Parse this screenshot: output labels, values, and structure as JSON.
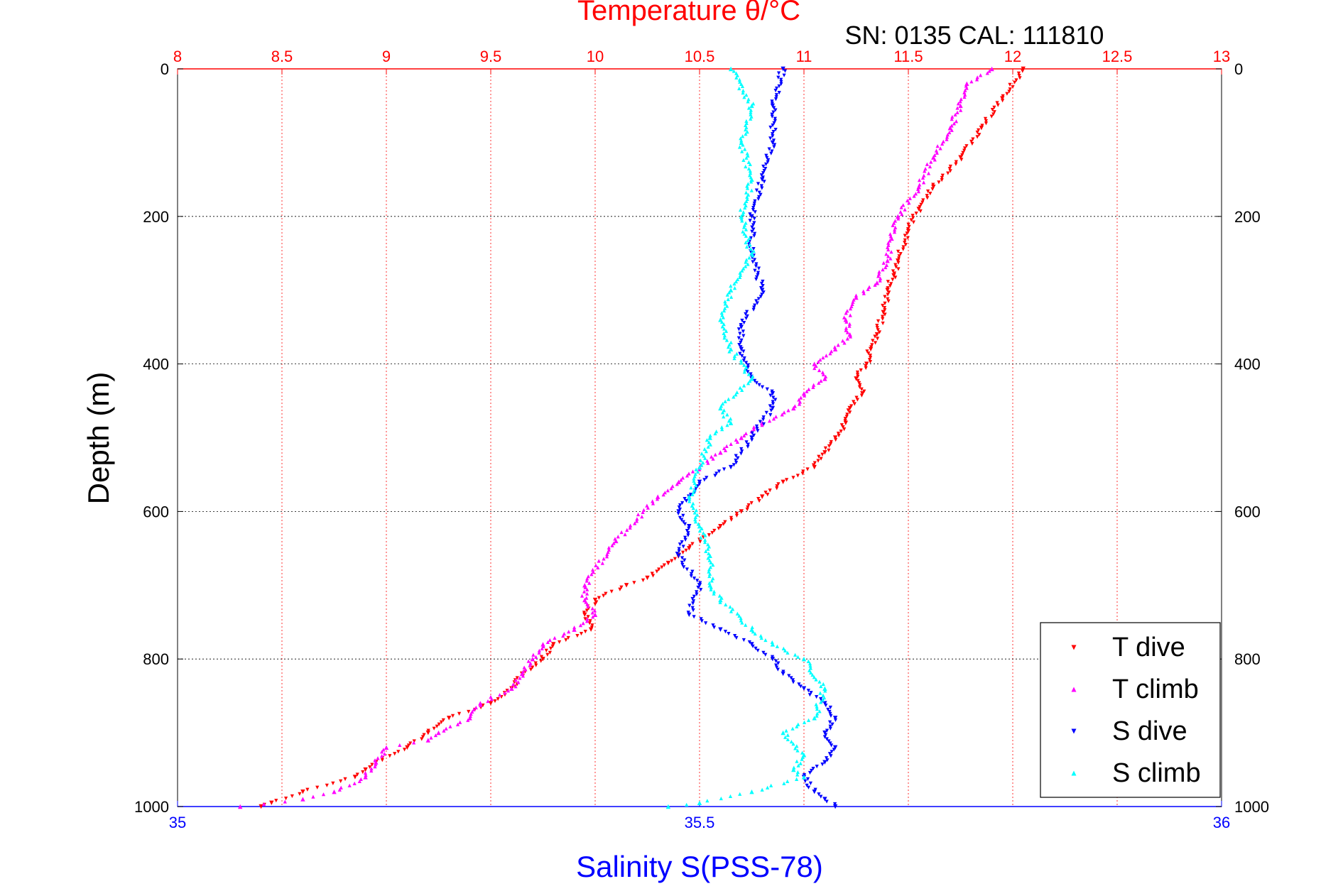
{
  "chart_data": {
    "type": "scatter",
    "title": "Temperature θ/°C",
    "subtitle": "SN: 0135  CAL: 111810",
    "ylabel": "Depth (m)",
    "xlabel_bottom": "Salinity S(PSS-78)",
    "xlabel_top": "Temperature θ/°C",
    "x_top": {
      "label": "Temperature θ/°C",
      "lim": [
        8,
        13
      ],
      "ticks": [
        "8",
        "8.5",
        "9",
        "9.5",
        "10",
        "10.5",
        "11",
        "11.5",
        "12",
        "12.5",
        "13"
      ],
      "color": "#ff0000"
    },
    "x_bottom": {
      "label": "Salinity S(PSS-78)",
      "lim": [
        35,
        36
      ],
      "ticks": [
        "35",
        "35.5",
        "36"
      ],
      "color": "#0000ff"
    },
    "y": {
      "label": "Depth (m)",
      "lim": [
        0,
        1000
      ],
      "reversed": true,
      "ticks": [
        "0",
        "200",
        "400",
        "600",
        "800",
        "1000"
      ]
    },
    "grid": true,
    "legend_position": "bottom-right",
    "series": [
      {
        "name": "T dive",
        "axis": "top",
        "color": "#ff0000",
        "marker": "triangle-down",
        "x": [
          12.05,
          11.95,
          11.85,
          11.75,
          11.62,
          11.55,
          11.5,
          11.45,
          11.43,
          11.4,
          11.38,
          11.35,
          11.32,
          11.3,
          11.25,
          11.28,
          11.22,
          11.2,
          11.15,
          11.1,
          11.05,
          10.9,
          10.8,
          10.7,
          10.6,
          10.45,
          10.35,
          10.25,
          10.15,
          10.0,
          9.95,
          9.98,
          9.8,
          9.75,
          9.65,
          9.6,
          9.5,
          9.3,
          9.2,
          9.1,
          8.95,
          8.9,
          8.85,
          8.6,
          8.45,
          8.4
        ],
        "y": [
          0,
          40,
          80,
          120,
          160,
          190,
          220,
          260,
          280,
          300,
          330,
          360,
          380,
          400,
          420,
          440,
          460,
          480,
          500,
          520,
          540,
          560,
          580,
          600,
          620,
          650,
          670,
          690,
          700,
          720,
          740,
          760,
          780,
          800,
          820,
          840,
          860,
          880,
          900,
          920,
          940,
          950,
          960,
          980,
          995,
          1000
        ]
      },
      {
        "name": "T climb",
        "axis": "top",
        "color": "#ff00ff",
        "marker": "triangle-up",
        "x": [
          11.9,
          11.78,
          11.75,
          11.7,
          11.62,
          11.55,
          11.45,
          11.42,
          11.4,
          11.35,
          11.25,
          11.2,
          11.22,
          11.15,
          11.05,
          11.1,
          11.0,
          10.95,
          10.8,
          10.7,
          10.6,
          10.5,
          10.4,
          10.3,
          10.1,
          9.95,
          9.95,
          10.0,
          9.9,
          9.75,
          9.7,
          9.65,
          9.6,
          9.45,
          9.4,
          9.25,
          9.2,
          9.0,
          8.95,
          8.9,
          8.75,
          8.6,
          8.3
        ],
        "y": [
          0,
          20,
          50,
          80,
          120,
          160,
          200,
          230,
          260,
          290,
          310,
          340,
          360,
          380,
          400,
          420,
          440,
          460,
          480,
          500,
          520,
          540,
          560,
          580,
          640,
          700,
          720,
          740,
          760,
          780,
          800,
          820,
          840,
          860,
          880,
          900,
          910,
          920,
          940,
          960,
          980,
          990,
          1000
        ]
      },
      {
        "name": "S dive",
        "axis": "bottom",
        "color": "#0000ff",
        "marker": "triangle-down",
        "x": [
          35.58,
          35.57,
          35.57,
          35.56,
          35.55,
          35.55,
          35.56,
          35.54,
          35.54,
          35.55,
          35.57,
          35.57,
          35.55,
          35.53,
          35.5,
          35.49,
          35.48,
          35.49,
          35.48,
          35.5,
          35.49,
          35.52,
          35.55,
          35.57,
          35.58,
          35.6,
          35.62,
          35.63,
          35.62,
          35.63,
          35.62,
          35.6,
          35.61,
          35.62,
          35.63
        ],
        "y": [
          0,
          50,
          100,
          150,
          200,
          250,
          300,
          350,
          380,
          420,
          440,
          460,
          500,
          540,
          560,
          580,
          600,
          620,
          660,
          700,
          740,
          760,
          780,
          800,
          820,
          840,
          860,
          880,
          900,
          920,
          940,
          960,
          980,
          990,
          1000
        ]
      },
      {
        "name": "S climb",
        "axis": "bottom",
        "color": "#00ffff",
        "marker": "triangle-up",
        "x": [
          35.53,
          35.55,
          35.54,
          35.55,
          35.54,
          35.55,
          35.53,
          35.52,
          35.53,
          35.55,
          35.52,
          35.53,
          35.51,
          35.5,
          35.49,
          35.5,
          35.51,
          35.51,
          35.52,
          35.55,
          35.57,
          35.6,
          35.62,
          35.61,
          35.58,
          35.6,
          35.59,
          35.6,
          35.55,
          35.5,
          35.47
        ],
        "y": [
          0,
          50,
          100,
          150,
          200,
          250,
          300,
          340,
          380,
          420,
          460,
          480,
          500,
          540,
          580,
          620,
          660,
          700,
          720,
          760,
          780,
          800,
          840,
          880,
          900,
          930,
          950,
          960,
          980,
          995,
          1000
        ]
      }
    ]
  }
}
